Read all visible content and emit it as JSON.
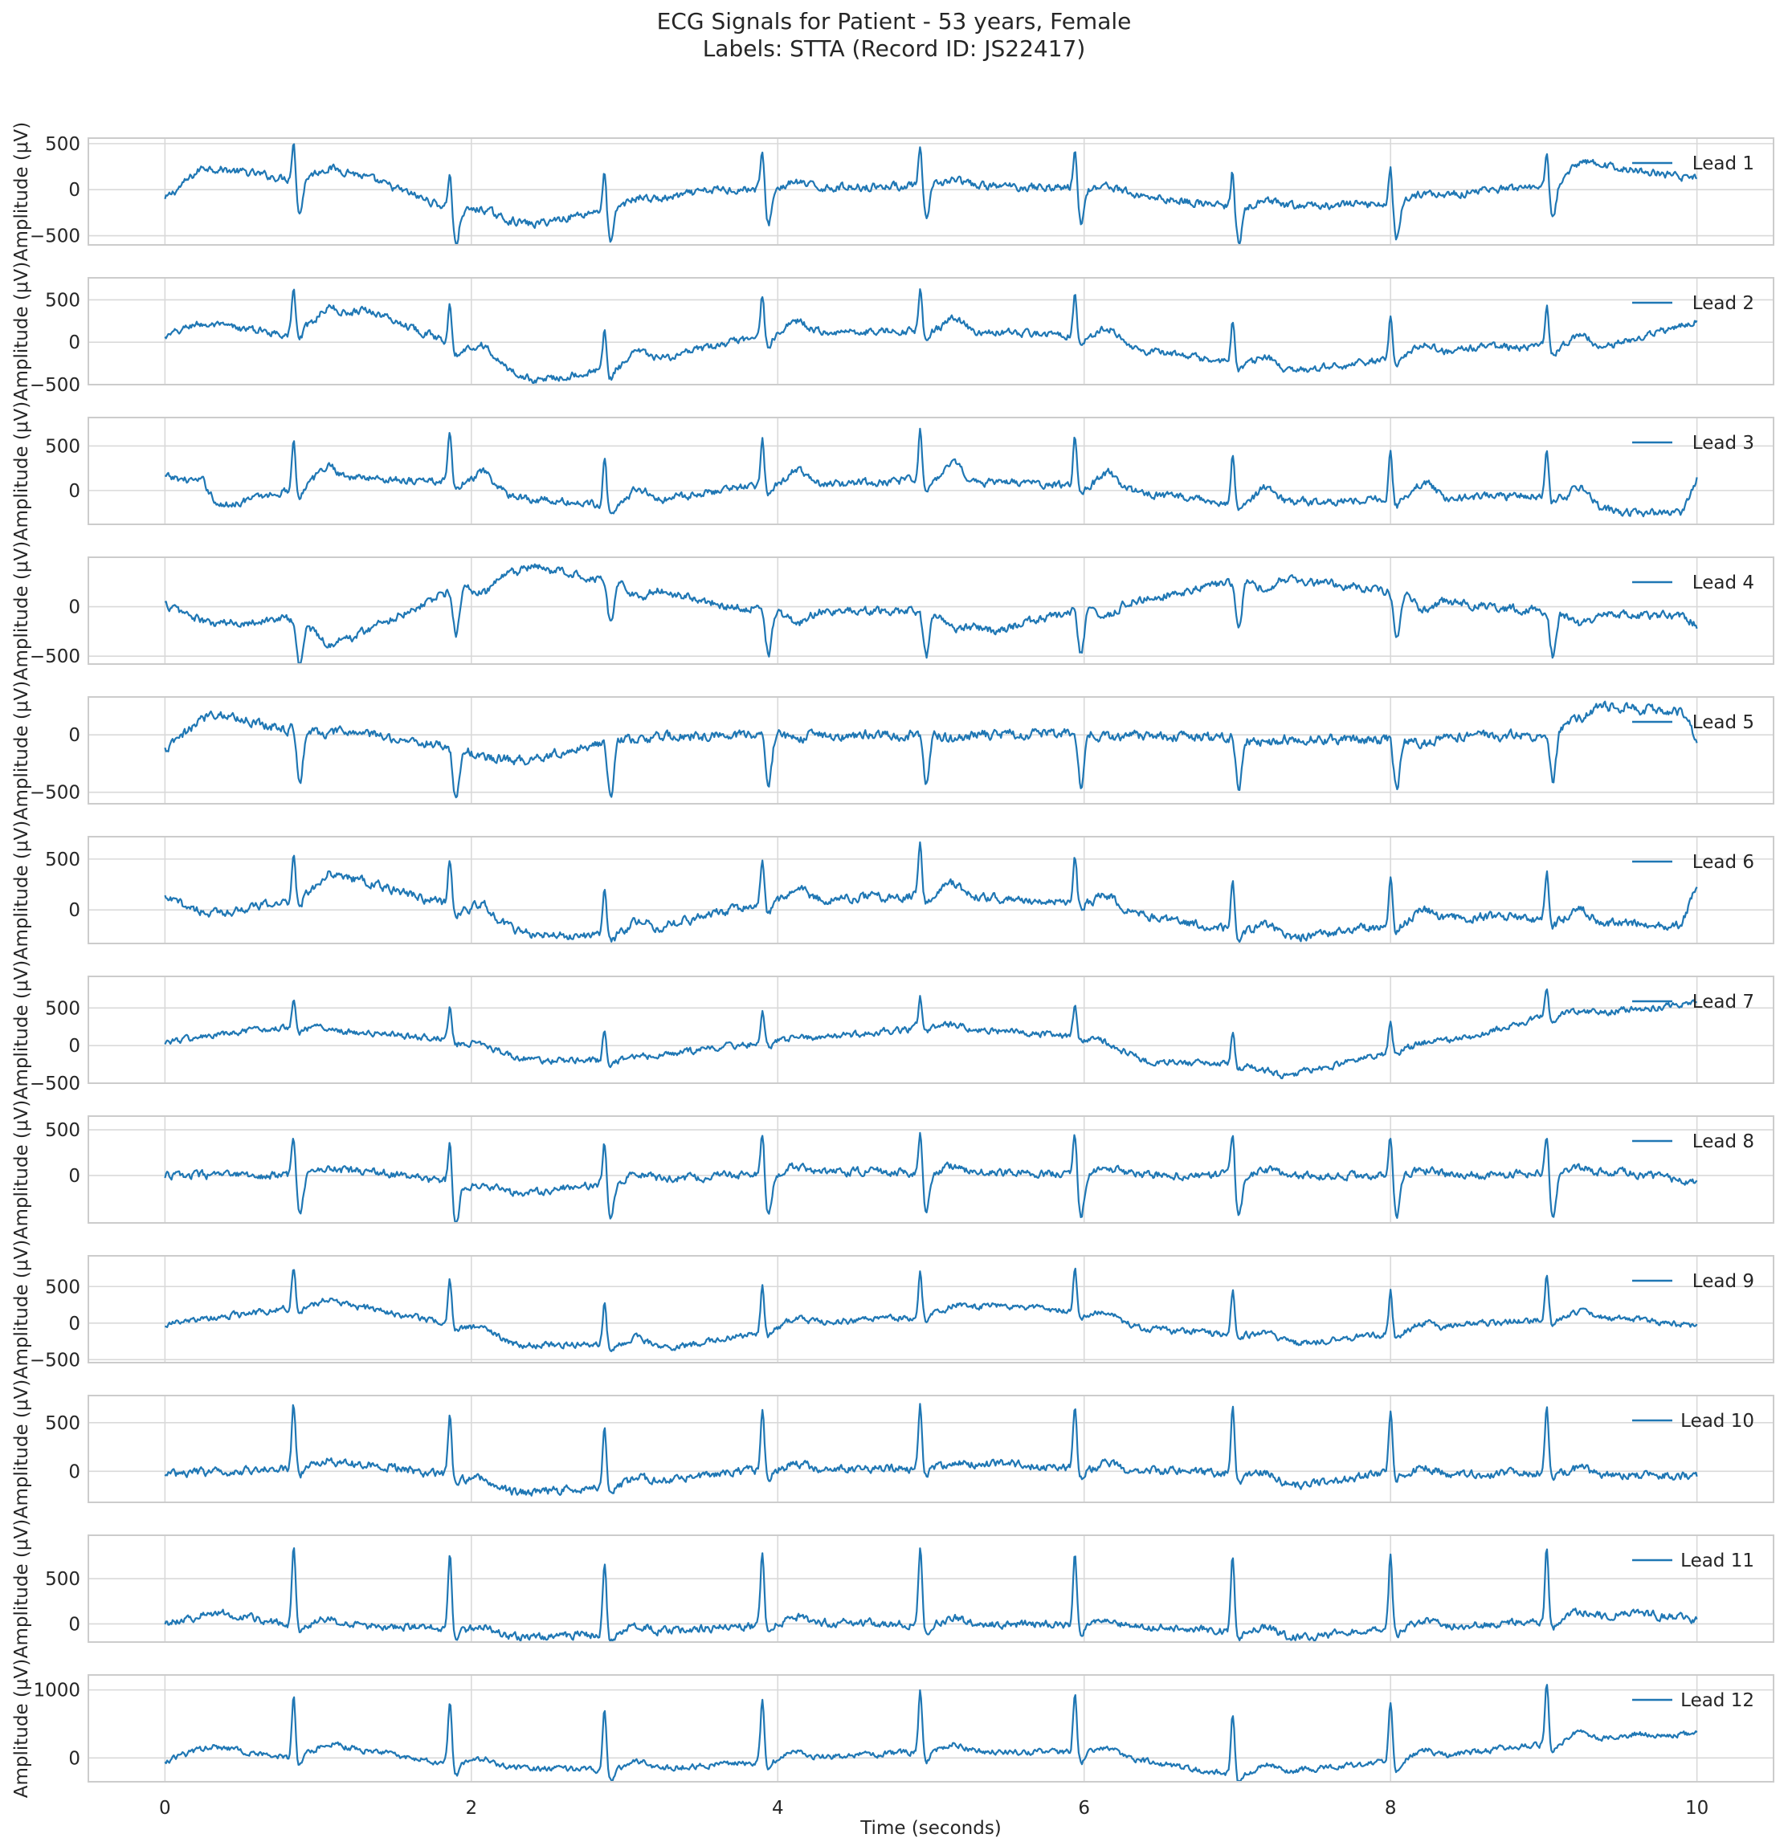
{
  "figure": {
    "title_line1": "ECG Signals for Patient - 53 years, Female",
    "title_line2": "Labels: STTA (Record ID: JS22417)",
    "xlabel": "Time (seconds)",
    "ylabel": "Amplitude (μV)",
    "line_color": "#1f77b4"
  },
  "chart_data": {
    "type": "line",
    "xlim": [
      -0.5,
      10.5
    ],
    "x_ticks": [
      0,
      2,
      4,
      6,
      8,
      10
    ],
    "x_tick_labels": [
      "0",
      "2",
      "4",
      "6",
      "8",
      "10"
    ],
    "grid": true,
    "legend_position": "upper-right",
    "duration_s": 10,
    "beat_times_s": [
      0.84,
      1.86,
      2.87,
      3.9,
      4.93,
      5.94,
      6.97,
      8.0,
      9.02
    ],
    "series": [
      {
        "name": "Lead 1",
        "ylim": [
          -600,
          560
        ],
        "y_ticks": [
          500,
          0,
          -500
        ],
        "y_tick_labels": [
          "500",
          "0",
          "−500"
        ],
        "r_peak": 430,
        "s_depth": -380,
        "t_amp": 60,
        "baseline": [
          [
            0,
            -110
          ],
          [
            0.25,
            250
          ],
          [
            0.8,
            120
          ],
          [
            1.2,
            200
          ],
          [
            1.85,
            -200
          ],
          [
            2.4,
            -380
          ],
          [
            2.9,
            -200
          ],
          [
            3.6,
            0
          ],
          [
            4.2,
            20
          ],
          [
            5.0,
            50
          ],
          [
            6.0,
            20
          ],
          [
            7.0,
            -200
          ],
          [
            8.0,
            -150
          ],
          [
            8.6,
            0
          ],
          [
            9.0,
            0
          ],
          [
            9.3,
            280
          ],
          [
            10.0,
            120
          ]
        ]
      },
      {
        "name": "Lead 2",
        "ylim": [
          -500,
          760
        ],
        "y_ticks": [
          500,
          0,
          -500
        ],
        "y_tick_labels": [
          "500",
          "0",
          "−500"
        ],
        "r_peak": 500,
        "s_depth": -100,
        "t_amp": 150,
        "baseline": [
          [
            0,
            50
          ],
          [
            0.2,
            220
          ],
          [
            0.8,
            100
          ],
          [
            1.3,
            400
          ],
          [
            1.85,
            0
          ],
          [
            2.4,
            -450
          ],
          [
            3.0,
            -300
          ],
          [
            3.7,
            0
          ],
          [
            4.2,
            120
          ],
          [
            5.0,
            140
          ],
          [
            6.0,
            80
          ],
          [
            6.4,
            -100
          ],
          [
            7.0,
            -250
          ],
          [
            7.3,
            -360
          ],
          [
            8.0,
            -200
          ],
          [
            8.6,
            -60
          ],
          [
            9.4,
            -60
          ],
          [
            10.0,
            250
          ]
        ]
      },
      {
        "name": "Lead 3",
        "ylim": [
          -380,
          820
        ],
        "y_ticks": [
          500,
          0
        ],
        "y_tick_labels": [
          "500",
          "0"
        ],
        "r_peak": 560,
        "s_depth": -80,
        "t_amp": 180,
        "baseline": [
          [
            0,
            150
          ],
          [
            0.25,
            100
          ],
          [
            0.35,
            -180
          ],
          [
            0.8,
            0
          ],
          [
            1.2,
            150
          ],
          [
            1.85,
            100
          ],
          [
            2.4,
            -100
          ],
          [
            3.0,
            -180
          ],
          [
            3.7,
            30
          ],
          [
            4.2,
            60
          ],
          [
            5.0,
            120
          ],
          [
            6.0,
            50
          ],
          [
            7.0,
            -150
          ],
          [
            8.0,
            -100
          ],
          [
            9.0,
            -50
          ],
          [
            9.5,
            -250
          ],
          [
            9.9,
            -250
          ],
          [
            10.0,
            140
          ]
        ]
      },
      {
        "name": "Lead 4",
        "ylim": [
          -580,
          500
        ],
        "y_ticks": [
          0,
          -500
        ],
        "y_tick_labels": [
          "0",
          "−500"
        ],
        "r_peak": 30,
        "s_depth": -450,
        "t_amp": -120,
        "baseline": [
          [
            0,
            20
          ],
          [
            0.3,
            -180
          ],
          [
            0.8,
            -120
          ],
          [
            1.2,
            -320
          ],
          [
            1.85,
            150
          ],
          [
            2.4,
            400
          ],
          [
            3.0,
            250
          ],
          [
            3.7,
            0
          ],
          [
            4.2,
            -50
          ],
          [
            5.0,
            -50
          ],
          [
            5.4,
            -250
          ],
          [
            6.0,
            -20
          ],
          [
            7.0,
            250
          ],
          [
            7.2,
            320
          ],
          [
            8.0,
            150
          ],
          [
            8.6,
            0
          ],
          [
            9.4,
            -80
          ],
          [
            9.9,
            -100
          ],
          [
            10.0,
            -180
          ]
        ]
      },
      {
        "name": "Lead 5",
        "ylim": [
          -600,
          330
        ],
        "y_ticks": [
          0,
          -500
        ],
        "y_tick_labels": [
          "0",
          "−500"
        ],
        "r_peak": 30,
        "s_depth": -450,
        "t_amp": -30,
        "baseline": [
          [
            0,
            -140
          ],
          [
            0.3,
            200
          ],
          [
            0.8,
            50
          ],
          [
            1.2,
            30
          ],
          [
            1.85,
            -100
          ],
          [
            2.3,
            -230
          ],
          [
            3.0,
            -30
          ],
          [
            3.7,
            0
          ],
          [
            4.2,
            0
          ],
          [
            5.0,
            0
          ],
          [
            6.0,
            10
          ],
          [
            7.0,
            -30
          ],
          [
            8.0,
            -40
          ],
          [
            9.0,
            0
          ],
          [
            9.35,
            250
          ],
          [
            9.9,
            200
          ],
          [
            10.0,
            -40
          ]
        ]
      },
      {
        "name": "Lead 6",
        "ylim": [
          -330,
          720
        ],
        "y_ticks": [
          500,
          0
        ],
        "y_tick_labels": [
          "500",
          "0"
        ],
        "r_peak": 480,
        "s_depth": -80,
        "t_amp": 120,
        "baseline": [
          [
            0,
            110
          ],
          [
            0.3,
            -40
          ],
          [
            0.8,
            80
          ],
          [
            1.2,
            320
          ],
          [
            1.85,
            50
          ],
          [
            2.4,
            -250
          ],
          [
            3.0,
            -250
          ],
          [
            3.7,
            0
          ],
          [
            4.2,
            100
          ],
          [
            5.0,
            150
          ],
          [
            6.0,
            80
          ],
          [
            6.4,
            -60
          ],
          [
            7.0,
            -200
          ],
          [
            7.3,
            -280
          ],
          [
            8.0,
            -150
          ],
          [
            8.6,
            -60
          ],
          [
            9.4,
            -130
          ],
          [
            9.9,
            -150
          ],
          [
            10.0,
            230
          ]
        ]
      },
      {
        "name": "Lead 7",
        "ylim": [
          -500,
          920
        ],
        "y_ticks": [
          500,
          0,
          -500
        ],
        "y_tick_labels": [
          "500",
          "0",
          "−500"
        ],
        "r_peak": 420,
        "s_depth": -60,
        "t_amp": 40,
        "baseline": [
          [
            0,
            50
          ],
          [
            0.8,
            250
          ],
          [
            1.2,
            180
          ],
          [
            1.85,
            100
          ],
          [
            2.4,
            -200
          ],
          [
            3.0,
            -200
          ],
          [
            3.7,
            0
          ],
          [
            4.2,
            80
          ],
          [
            5.0,
            250
          ],
          [
            6.0,
            120
          ],
          [
            6.4,
            -200
          ],
          [
            7.0,
            -250
          ],
          [
            7.3,
            -420
          ],
          [
            8.0,
            -80
          ],
          [
            8.6,
            150
          ],
          [
            9.0,
            380
          ],
          [
            10.0,
            560
          ]
        ]
      },
      {
        "name": "Lead 8",
        "ylim": [
          -520,
          650
        ],
        "y_ticks": [
          500,
          0
        ],
        "y_tick_labels": [
          "500",
          "0"
        ],
        "r_peak": 480,
        "s_depth": -450,
        "t_amp": 60,
        "baseline": [
          [
            0,
            0
          ],
          [
            0.8,
            0
          ],
          [
            1.3,
            60
          ],
          [
            1.85,
            -80
          ],
          [
            2.3,
            -200
          ],
          [
            3.0,
            -50
          ],
          [
            3.7,
            0
          ],
          [
            4.2,
            40
          ],
          [
            5.0,
            40
          ],
          [
            6.0,
            20
          ],
          [
            7.0,
            0
          ],
          [
            8.0,
            0
          ],
          [
            9.0,
            20
          ],
          [
            9.5,
            40
          ],
          [
            10.0,
            -80
          ]
        ]
      },
      {
        "name": "Lead 9",
        "ylim": [
          -540,
          920
        ],
        "y_ticks": [
          500,
          0,
          -500
        ],
        "y_tick_labels": [
          "500",
          "0",
          "−500"
        ],
        "r_peak": 600,
        "s_depth": -80,
        "t_amp": 100,
        "baseline": [
          [
            0,
            -20
          ],
          [
            0.8,
            200
          ],
          [
            1.2,
            250
          ],
          [
            1.85,
            0
          ],
          [
            2.3,
            -300
          ],
          [
            3.0,
            -280
          ],
          [
            3.3,
            -350
          ],
          [
            3.7,
            -200
          ],
          [
            4.2,
            0
          ],
          [
            5.0,
            100
          ],
          [
            5.4,
            250
          ],
          [
            6.0,
            150
          ],
          [
            6.4,
            -80
          ],
          [
            7.0,
            -150
          ],
          [
            7.4,
            -280
          ],
          [
            8.0,
            -150
          ],
          [
            8.6,
            0
          ],
          [
            9.5,
            80
          ],
          [
            10.0,
            -60
          ]
        ]
      },
      {
        "name": "Lead 10",
        "ylim": [
          -320,
          780
        ],
        "y_ticks": [
          500,
          0
        ],
        "y_tick_labels": [
          "500",
          "0"
        ],
        "r_peak": 650,
        "s_depth": -80,
        "t_amp": 60,
        "baseline": [
          [
            0,
            -30
          ],
          [
            0.8,
            30
          ],
          [
            1.3,
            80
          ],
          [
            1.85,
            -50
          ],
          [
            2.3,
            -220
          ],
          [
            3.0,
            -150
          ],
          [
            3.7,
            0
          ],
          [
            4.2,
            20
          ],
          [
            5.0,
            30
          ],
          [
            5.4,
            80
          ],
          [
            6.0,
            20
          ],
          [
            7.0,
            -20
          ],
          [
            7.4,
            -150
          ],
          [
            8.0,
            -20
          ],
          [
            9.0,
            -20
          ],
          [
            10.0,
            -50
          ]
        ]
      },
      {
        "name": "Lead 11",
        "ylim": [
          -200,
          980
        ],
        "y_ticks": [
          500,
          0
        ],
        "y_tick_labels": [
          "500",
          "0"
        ],
        "r_peak": 830,
        "s_depth": -80,
        "t_amp": 70,
        "baseline": [
          [
            0,
            10
          ],
          [
            0.35,
            130
          ],
          [
            0.8,
            0
          ],
          [
            1.85,
            -50
          ],
          [
            2.3,
            -150
          ],
          [
            3.0,
            -100
          ],
          [
            3.7,
            -30
          ],
          [
            4.2,
            20
          ],
          [
            5.0,
            0
          ],
          [
            6.0,
            0
          ],
          [
            7.0,
            -80
          ],
          [
            7.4,
            -150
          ],
          [
            8.0,
            -50
          ],
          [
            9.0,
            30
          ],
          [
            9.6,
            120
          ],
          [
            10.0,
            50
          ]
        ]
      },
      {
        "name": "Lead 12",
        "ylim": [
          -350,
          1220
        ],
        "y_ticks": [
          1000,
          0
        ],
        "y_tick_labels": [
          "1000",
          "0"
        ],
        "r_peak": 900,
        "s_depth": -150,
        "t_amp": 120,
        "baseline": [
          [
            0,
            -50
          ],
          [
            0.3,
            180
          ],
          [
            0.8,
            0
          ],
          [
            1.2,
            150
          ],
          [
            1.85,
            -80
          ],
          [
            2.3,
            -150
          ],
          [
            3.0,
            -180
          ],
          [
            3.7,
            -80
          ],
          [
            4.2,
            0
          ],
          [
            5.0,
            100
          ],
          [
            6.0,
            80
          ],
          [
            7.0,
            -250
          ],
          [
            7.4,
            -180
          ],
          [
            8.0,
            -50
          ],
          [
            9.0,
            200
          ],
          [
            9.6,
            350
          ],
          [
            10.0,
            350
          ]
        ]
      }
    ]
  }
}
